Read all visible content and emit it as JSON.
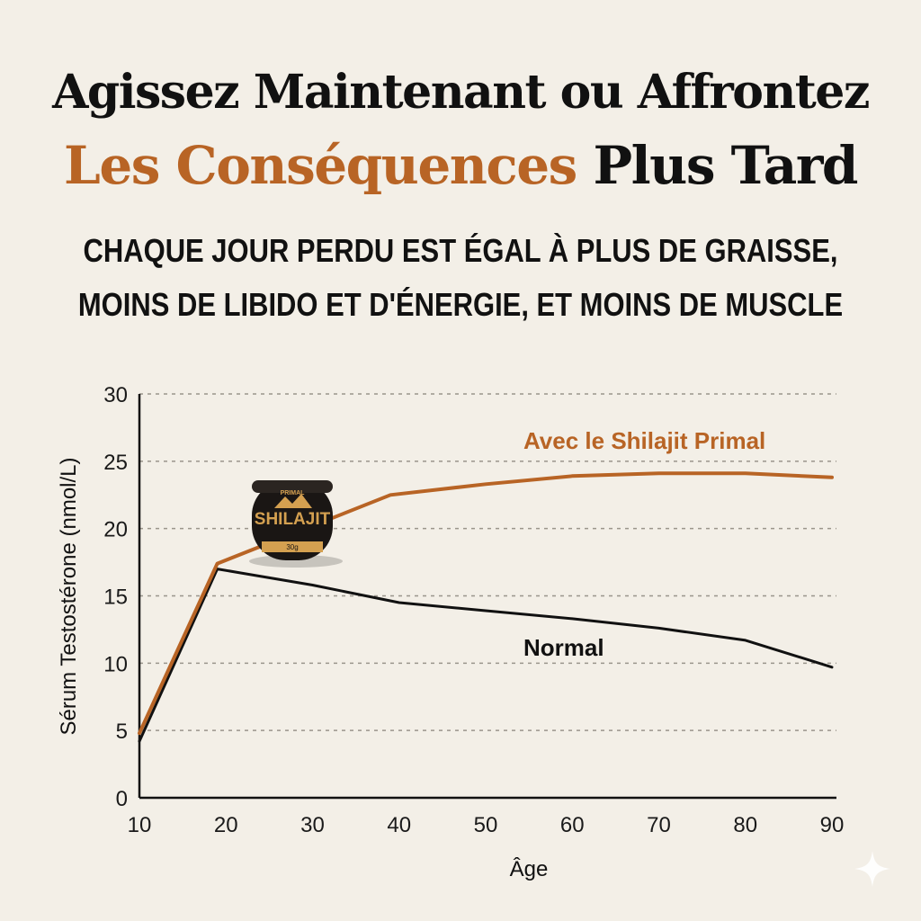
{
  "headline": {
    "line1": "Agissez Maintenant ou Affrontez",
    "line2_accent": "Les Conséquences",
    "line2_rest": "Plus Tard"
  },
  "subheadline": {
    "line1": "CHAQUE JOUR PERDU EST ÉGAL À PLUS DE GRAISSE,",
    "line2": "MOINS DE LIBIDO ET D'ÉNERGIE, ET MOINS DE MUSCLE"
  },
  "product": {
    "brand_small": "PRIMAL",
    "name": "SHILAJIT",
    "weight": "30g",
    "colors": {
      "jar": "#1a1614",
      "label": "#d4a050"
    }
  },
  "colors": {
    "accent": "#b86425",
    "text": "#111111",
    "background": "#f3efe7",
    "grid": "#9a958c"
  },
  "chart_data": {
    "type": "line",
    "xlabel": "Âge",
    "ylabel": "Sérum Testostérone (nmol/L)",
    "xlim": [
      10,
      90
    ],
    "ylim": [
      0,
      30
    ],
    "x_ticks": [
      10,
      20,
      30,
      40,
      50,
      60,
      70,
      80,
      90
    ],
    "y_ticks": [
      0,
      5,
      10,
      15,
      20,
      25,
      30
    ],
    "grid": "horizontal-dashed",
    "series": [
      {
        "name": "Avec le Shilajit Primal",
        "color": "#b86425",
        "x": [
          10,
          19,
          30,
          39,
          50,
          60,
          70,
          80,
          90
        ],
        "y": [
          4.8,
          17.4,
          20.2,
          22.5,
          23.3,
          23.9,
          24.1,
          24.1,
          23.8
        ]
      },
      {
        "name": "Normal",
        "color": "#111111",
        "x": [
          10,
          19,
          30,
          40,
          50,
          60,
          70,
          80,
          90
        ],
        "y": [
          4.2,
          17.0,
          15.8,
          14.5,
          13.9,
          13.3,
          12.6,
          11.7,
          9.7
        ]
      }
    ]
  }
}
